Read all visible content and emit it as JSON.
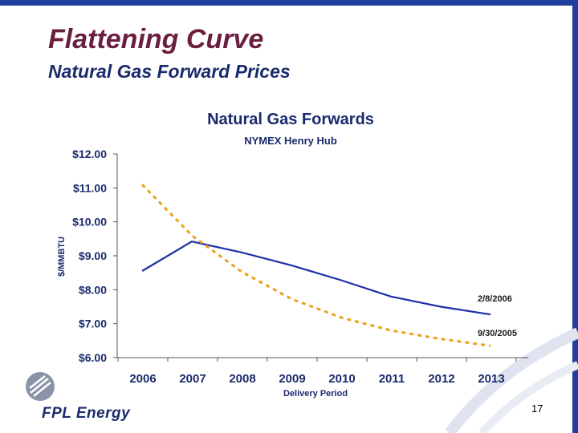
{
  "slide": {
    "title": "Flattening Curve",
    "subtitle": "Natural Gas Forward Prices",
    "page_number": "17",
    "logo_text": "FPL Energy"
  },
  "colors": {
    "title": "#6b1f3e",
    "subtitle": "#1a2a6c",
    "frame": "#1f3f9e",
    "series_2006": "#1f2fa8",
    "series_2005": "#e8a31f"
  },
  "chart_data": {
    "type": "line",
    "title": "Natural Gas Forwards",
    "subtitle": "NYMEX Henry Hub",
    "xlabel": "Delivery Period",
    "ylabel": "$/MMBTU",
    "x": [
      2006,
      2007,
      2008,
      2009,
      2010,
      2011,
      2012,
      2013
    ],
    "x_tick_labels": [
      "2006",
      "2007",
      "2008",
      "2009",
      "2010",
      "2011",
      "2012",
      "2013"
    ],
    "y_tick_labels": [
      "$12.00",
      "$11.00",
      "$10.00",
      "$9.00",
      "$8.00",
      "$7.00",
      "$6.00"
    ],
    "y_ticks": [
      12,
      11,
      10,
      9,
      8,
      7,
      6
    ],
    "ylim": [
      6,
      12
    ],
    "grid": false,
    "series": [
      {
        "name": "2/8/2006",
        "style": "solid",
        "values": [
          8.55,
          9.42,
          9.1,
          8.72,
          8.28,
          7.8,
          7.5,
          7.27
        ]
      },
      {
        "name": "9/30/2005",
        "style": "dashed",
        "values": [
          11.1,
          9.6,
          8.53,
          7.73,
          7.18,
          6.8,
          6.55,
          6.35
        ]
      }
    ]
  }
}
